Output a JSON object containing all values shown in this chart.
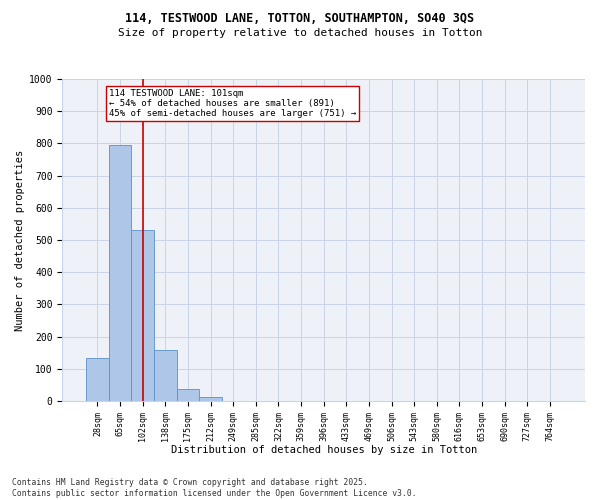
{
  "title_line1": "114, TESTWOOD LANE, TOTTON, SOUTHAMPTON, SO40 3QS",
  "title_line2": "Size of property relative to detached houses in Totton",
  "xlabel": "Distribution of detached houses by size in Totton",
  "ylabel": "Number of detached properties",
  "categories": [
    "28sqm",
    "65sqm",
    "102sqm",
    "138sqm",
    "175sqm",
    "212sqm",
    "249sqm",
    "285sqm",
    "322sqm",
    "359sqm",
    "396sqm",
    "433sqm",
    "469sqm",
    "506sqm",
    "543sqm",
    "580sqm",
    "616sqm",
    "653sqm",
    "690sqm",
    "727sqm",
    "764sqm"
  ],
  "values": [
    135,
    795,
    530,
    160,
    38,
    12,
    0,
    0,
    0,
    0,
    0,
    0,
    0,
    0,
    0,
    0,
    0,
    0,
    0,
    0,
    0
  ],
  "bar_color": "#aec6e8",
  "bar_edge_color": "#5a90c8",
  "vline_x": 2,
  "vline_color": "#cc0000",
  "annotation_text": "114 TESTWOOD LANE: 101sqm\n← 54% of detached houses are smaller (891)\n45% of semi-detached houses are larger (751) →",
  "annotation_box_color": "#ffffff",
  "annotation_box_edge_color": "#cc0000",
  "ylim": [
    0,
    1000
  ],
  "yticks": [
    0,
    100,
    200,
    300,
    400,
    500,
    600,
    700,
    800,
    900,
    1000
  ],
  "grid_color": "#c8d4e8",
  "bg_color": "#eef2f8",
  "footnote": "Contains HM Land Registry data © Crown copyright and database right 2025.\nContains public sector information licensed under the Open Government Licence v3.0."
}
